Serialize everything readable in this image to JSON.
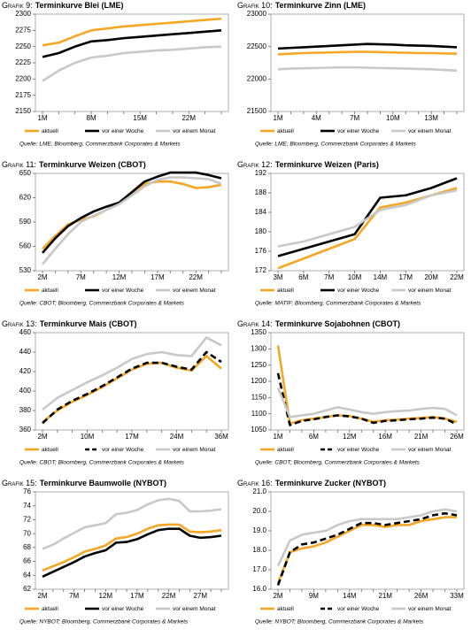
{
  "chart_data": [
    {
      "type": "line",
      "label": "Grafik 9:",
      "title": "Terminkurve Blei (LME)",
      "source": "Quelle: LME; Bloomberg, Commerzbank Corporates & Markets",
      "categories": [
        "1M",
        null,
        null,
        "8M",
        null,
        null,
        "15M",
        null,
        null,
        "22M",
        null,
        null
      ],
      "series": [
        {
          "name": "aktuell",
          "color": "#f5a623",
          "values": [
            2252,
            2256,
            2266,
            2275,
            2278,
            2281,
            2283,
            2285,
            2287,
            2289,
            2291,
            2293
          ]
        },
        {
          "name": "vor einer Woche",
          "color": "#000000",
          "values": [
            2234,
            2240,
            2250,
            2258,
            2260,
            2263,
            2265,
            2267,
            2269,
            2271,
            2273,
            2275
          ]
        },
        {
          "name": "vor einem Monat",
          "color": "#c8c8c8",
          "values": [
            2197,
            2213,
            2225,
            2233,
            2236,
            2240,
            2242,
            2244,
            2245,
            2247,
            2249,
            2250
          ]
        }
      ],
      "ylim": [
        2150,
        2300
      ],
      "yticks": [
        2150,
        2175,
        2200,
        2225,
        2250,
        2275,
        2300
      ]
    },
    {
      "type": "line",
      "label": "Grafik 10:",
      "title": "Terminkurve Zinn (LME)",
      "source": "Quelle: LME; Bloomberg, Commerzbank Corporates & Markets",
      "categories": [
        "1M",
        null,
        null,
        "4M",
        null,
        null,
        "7M",
        null,
        null,
        "10M",
        null,
        null,
        "13M",
        null,
        null
      ],
      "series": [
        {
          "name": "aktuell",
          "color": "#f5a623",
          "values": [
            22380,
            22390,
            22400,
            22405,
            22410,
            22415,
            22420,
            22420,
            22415,
            22410,
            22405,
            22400,
            22400,
            22395,
            22390
          ]
        },
        {
          "name": "vor einer Woche",
          "color": "#000000",
          "values": [
            22470,
            22480,
            22490,
            22500,
            22510,
            22520,
            22530,
            22540,
            22535,
            22530,
            22520,
            22515,
            22510,
            22500,
            22490
          ]
        },
        {
          "name": "vor einem Monat",
          "color": "#c8c8c8",
          "values": [
            22150,
            22160,
            22165,
            22170,
            22175,
            22180,
            22180,
            22175,
            22170,
            22165,
            22160,
            22155,
            22150,
            22140,
            22130
          ]
        }
      ],
      "ylim": [
        21500,
        23000
      ],
      "yticks": [
        21500,
        22000,
        22500,
        23000
      ]
    },
    {
      "type": "line",
      "label": "Grafik 11:",
      "title": "Terminkurve Weizen (CBOT)",
      "source": "Quelle: CBOT; Bloomberg, Commerzbank Corporates & Markets",
      "categories": [
        "2M",
        null,
        null,
        "7M",
        null,
        null,
        "12M",
        null,
        null,
        "17M",
        null,
        null,
        "22M",
        null,
        null
      ],
      "series": [
        {
          "name": "aktuell",
          "color": "#f5a623",
          "values": [
            557,
            573,
            587,
            593,
            597,
            605,
            613,
            625,
            637,
            640,
            640,
            637,
            632,
            633,
            636
          ]
        },
        {
          "name": "vor einer Woche",
          "color": "#000000",
          "values": [
            552,
            570,
            585,
            595,
            603,
            609,
            614,
            627,
            640,
            646,
            651,
            651,
            651,
            648,
            644
          ]
        },
        {
          "name": "vor einem Monat",
          "color": "#c8c8c8",
          "values": [
            538,
            557,
            575,
            590,
            598,
            605,
            612,
            623,
            634,
            642,
            645,
            645,
            644,
            643,
            637
          ]
        }
      ],
      "ylim": [
        530,
        650
      ],
      "yticks": [
        530,
        560,
        590,
        620,
        650
      ]
    },
    {
      "type": "line",
      "label": "Grafik 12:",
      "title": "Terminkurve Weizen (Paris)",
      "source": "Quelle: MATIF; Bloomberg, Commerzbank Corporates & Markets",
      "categories": [
        "3M",
        "6M",
        "7M",
        "10M",
        "14M",
        "17M",
        "20M",
        "22M"
      ],
      "series": [
        {
          "name": "aktuell",
          "color": "#f5a623",
          "values": [
            172.5,
            174.5,
            176.5,
            178.5,
            185,
            186,
            187.5,
            189
          ]
        },
        {
          "name": "vor einer Woche",
          "color": "#000000",
          "values": [
            175,
            176.5,
            178,
            179.5,
            187,
            187.5,
            189,
            191
          ]
        },
        {
          "name": "vor einem Monat",
          "color": "#c8c8c8",
          "values": [
            177,
            178,
            179.5,
            181,
            184.5,
            185.5,
            187.5,
            188.5
          ]
        }
      ],
      "ylim": [
        172,
        192
      ],
      "yticks": [
        172,
        176,
        180,
        184,
        188,
        192
      ]
    },
    {
      "type": "line",
      "label": "Grafik 13:",
      "title": "Terminkurve Mais (CBOT)",
      "source": "Quelle: CBOT; Bloomberg, Commerzbank Corporates & Markets",
      "categories": [
        "2M",
        null,
        null,
        "10M",
        null,
        null,
        "17M",
        null,
        null,
        "24M",
        null,
        null,
        "36M"
      ],
      "series": [
        {
          "name": "aktuell",
          "color": "#f5a623",
          "values": [
            368,
            380,
            389,
            396,
            404,
            413,
            422,
            428,
            429,
            424,
            421,
            436,
            423
          ]
        },
        {
          "name": "vor einer Woche",
          "color": "#000000",
          "dash": true,
          "values": [
            367,
            381,
            390,
            397,
            405,
            414,
            423,
            429,
            429,
            425,
            422,
            440,
            430
          ]
        },
        {
          "name": "vor einem Monat",
          "color": "#c8c8c8",
          "values": [
            381,
            393,
            401,
            409,
            416,
            424,
            433,
            438,
            440,
            437,
            436,
            455,
            447
          ]
        }
      ],
      "ylim": [
        360,
        460
      ],
      "yticks": [
        360,
        380,
        400,
        420,
        440,
        460
      ]
    },
    {
      "type": "line",
      "label": "Grafik 14:",
      "title": "Terminkurve Sojabohnen (CBOT)",
      "source": "Quelle: CBOT; Bloomberg, Commerzbank Corporates & Markets",
      "categories": [
        "1M",
        null,
        null,
        "6M",
        null,
        null,
        "12M",
        null,
        null,
        "16M",
        null,
        null,
        "21M",
        null,
        null,
        "26M"
      ],
      "series": [
        {
          "name": "aktuell",
          "color": "#f5a623",
          "values": [
            1310,
            1070,
            1080,
            1085,
            1090,
            1095,
            1093,
            1085,
            1075,
            1080,
            1082,
            1085,
            1087,
            1090,
            1085,
            1075
          ]
        },
        {
          "name": "vor einer Woche",
          "color": "#000000",
          "dash": true,
          "values": [
            1225,
            1065,
            1078,
            1083,
            1090,
            1095,
            1092,
            1085,
            1072,
            1078,
            1080,
            1083,
            1085,
            1088,
            1085,
            1068
          ]
        },
        {
          "name": "vor einem Monat",
          "color": "#c8c8c8",
          "values": [
            1180,
            1090,
            1095,
            1100,
            1110,
            1120,
            1113,
            1105,
            1100,
            1105,
            1108,
            1110,
            1115,
            1118,
            1115,
            1095
          ]
        }
      ],
      "ylim": [
        1050,
        1350
      ],
      "yticks": [
        1050,
        1100,
        1150,
        1200,
        1250,
        1300,
        1350
      ]
    },
    {
      "type": "line",
      "label": "Grafik 15:",
      "title": "Terminkurve Baumwolle (NYBOT)",
      "source": "Quelle: NYBOT; Bloomberg, Commerzbank Corporates & Markets",
      "categories": [
        "2M",
        null,
        null,
        "7M",
        null,
        null,
        "12M",
        null,
        null,
        "17M",
        null,
        null,
        "22M",
        null,
        null,
        "27M",
        null,
        null
      ],
      "series": [
        {
          "name": "aktuell",
          "color": "#f5a623",
          "values": [
            64.7,
            65.3,
            65.9,
            66.6,
            67.4,
            67.8,
            68.3,
            69.3,
            69.5,
            70,
            70.7,
            71.2,
            71.3,
            71.3,
            70.3,
            70.2,
            70.3,
            70.5
          ]
        },
        {
          "name": "vor einer Woche",
          "color": "#000000",
          "values": [
            63.8,
            64.5,
            65.2,
            65.9,
            66.7,
            67.2,
            67.6,
            68.7,
            68.8,
            69.2,
            69.9,
            70.5,
            70.7,
            70.7,
            69.7,
            69.4,
            69.5,
            69.7
          ]
        },
        {
          "name": "vor einem Monat",
          "color": "#c8c8c8",
          "values": [
            67.8,
            68.4,
            69.3,
            70.1,
            70.9,
            71.2,
            71.5,
            72.8,
            73,
            73.4,
            74.2,
            74.8,
            75,
            74.7,
            73.2,
            73.2,
            73.3,
            73.5
          ]
        }
      ],
      "ylim": [
        62,
        76
      ],
      "yticks": [
        62,
        64,
        66,
        68,
        70,
        72,
        74,
        76
      ]
    },
    {
      "type": "line",
      "label": "Grafik 16:",
      "title": "Terminkurve Zucker (NYBOT)",
      "source": "Quelle: NYBOT; Bloomberg, Commerzbank Corporates & Markets",
      "categories": [
        "2M",
        null,
        null,
        "9M",
        null,
        null,
        "14M",
        null,
        null,
        "21M",
        null,
        null,
        "26M",
        null,
        null,
        "33M"
      ],
      "series": [
        {
          "name": "aktuell",
          "color": "#f5a623",
          "values": [
            16.3,
            17.9,
            18.1,
            18.2,
            18.4,
            18.7,
            19.0,
            19.3,
            19.3,
            19.2,
            19.3,
            19.3,
            19.5,
            19.6,
            19.7,
            19.7
          ]
        },
        {
          "name": "vor einer Woche",
          "color": "#000000",
          "dash": true,
          "values": [
            16.2,
            17.9,
            18.3,
            18.4,
            18.6,
            18.8,
            19.1,
            19.4,
            19.4,
            19.3,
            19.4,
            19.5,
            19.6,
            19.8,
            19.9,
            19.8
          ]
        },
        {
          "name": "vor einem Monat",
          "color": "#c8c8c8",
          "values": [
            17.2,
            18.5,
            18.8,
            18.9,
            19.0,
            19.3,
            19.5,
            19.6,
            19.6,
            19.6,
            19.6,
            19.7,
            19.8,
            20.0,
            20.1,
            20.0
          ]
        }
      ],
      "ylim": [
        16,
        21
      ],
      "yticks": [
        {
          "value": 16,
          "label": "16.0"
        },
        {
          "value": 17,
          "label": "17.0"
        },
        {
          "value": 18,
          "label": "18.0"
        },
        {
          "value": 19,
          "label": "19.0"
        },
        {
          "value": 20,
          "label": "20.0"
        },
        {
          "value": 21,
          "label": "21.0"
        }
      ]
    }
  ]
}
